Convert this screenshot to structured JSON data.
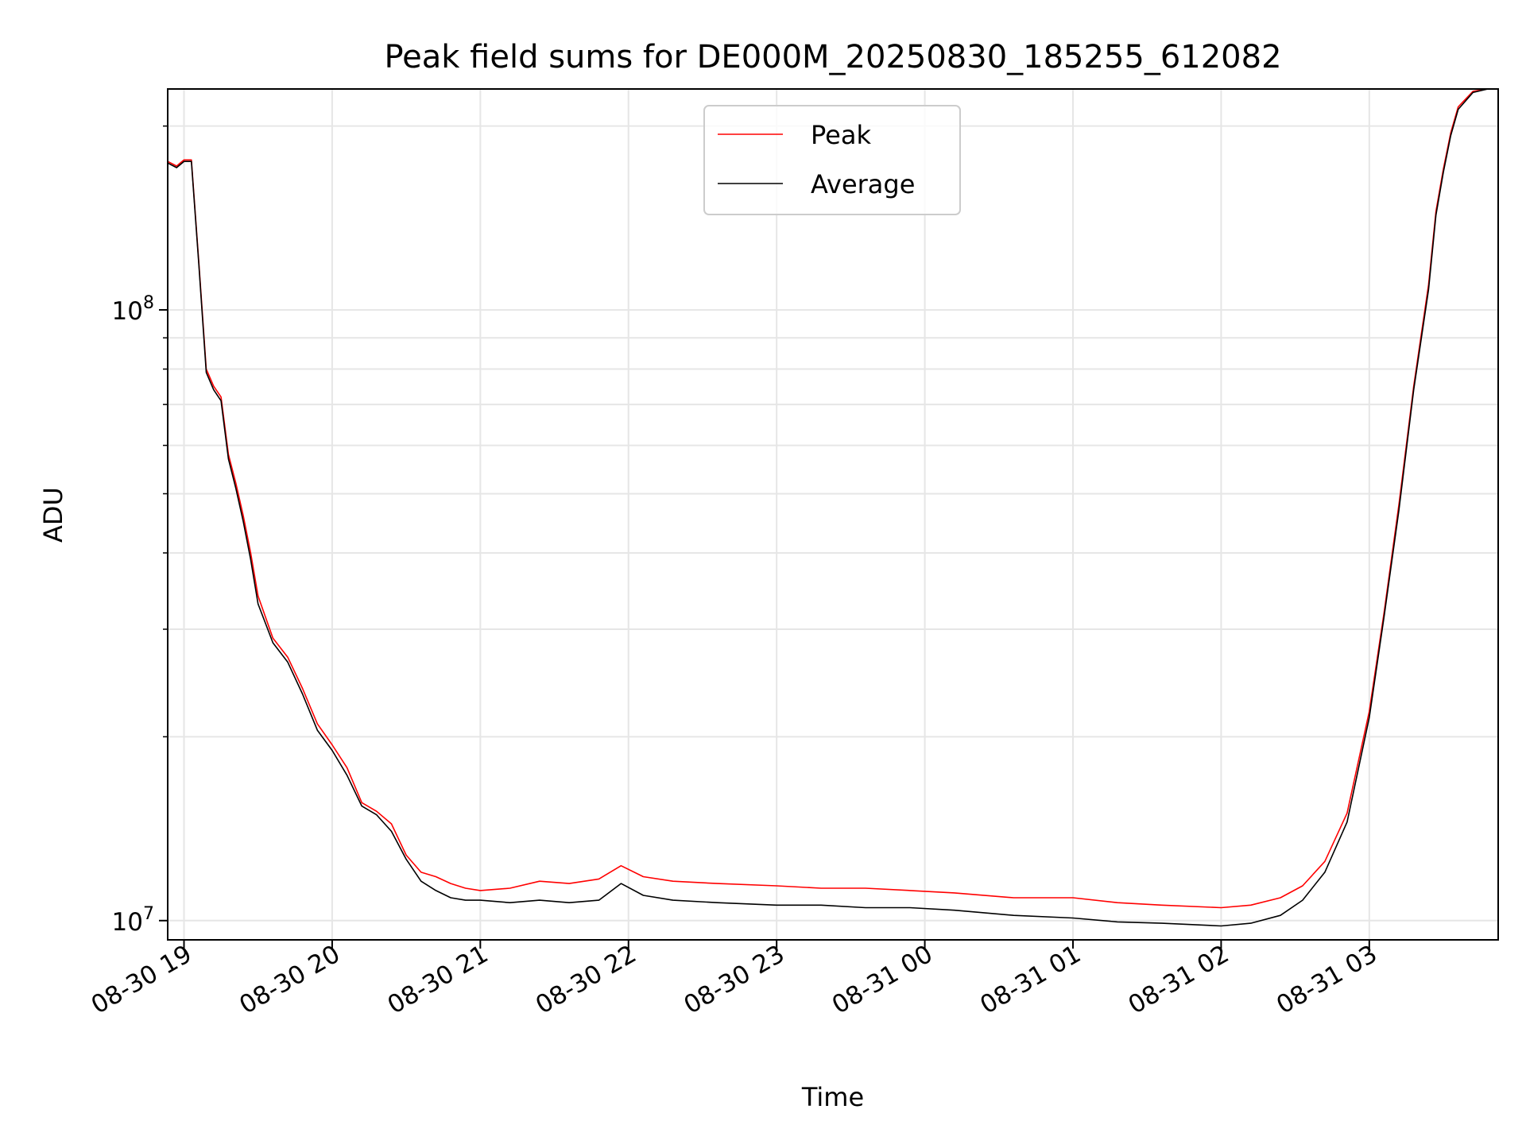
{
  "chart_data": {
    "type": "line",
    "title": "Peak field sums for DE000M_20250830_185255_612082",
    "xlabel": "Time",
    "ylabel": "ADU",
    "y_scale": "log",
    "ylim": [
      9300000,
      230000000
    ],
    "xlim_hours": [
      -0.11,
      8.87
    ],
    "grid": true,
    "legend_position": "upper center",
    "x_ticks": [
      {
        "hour": 0,
        "label": "08-30 19"
      },
      {
        "hour": 1,
        "label": "08-30 20"
      },
      {
        "hour": 2,
        "label": "08-30 21"
      },
      {
        "hour": 3,
        "label": "08-30 22"
      },
      {
        "hour": 4,
        "label": "08-30 23"
      },
      {
        "hour": 5,
        "label": "08-31 00"
      },
      {
        "hour": 6,
        "label": "08-31 01"
      },
      {
        "hour": 7,
        "label": "08-31 02"
      },
      {
        "hour": 8,
        "label": "08-31 03"
      }
    ],
    "y_ticks": [
      {
        "value": 10000000,
        "base": "10",
        "exp": "7"
      },
      {
        "value": 100000000,
        "base": "10",
        "exp": "8"
      }
    ],
    "x_unit": "hours after 08-30 19:00",
    "series": [
      {
        "name": "Peak",
        "color": "#ff0000",
        "x": [
          -0.11,
          -0.05,
          0.0,
          0.05,
          0.1,
          0.15,
          0.2,
          0.25,
          0.3,
          0.35,
          0.4,
          0.45,
          0.5,
          0.6,
          0.7,
          0.8,
          0.9,
          1.0,
          1.1,
          1.2,
          1.3,
          1.4,
          1.5,
          1.6,
          1.7,
          1.8,
          1.9,
          2.0,
          2.2,
          2.4,
          2.6,
          2.8,
          2.95,
          3.1,
          3.3,
          3.6,
          4.0,
          4.3,
          4.6,
          4.9,
          5.2,
          5.6,
          6.0,
          6.3,
          6.6,
          7.0,
          7.2,
          7.4,
          7.55,
          7.7,
          7.85,
          8.0,
          8.1,
          8.2,
          8.3,
          8.4,
          8.45,
          8.5,
          8.55,
          8.6,
          8.7,
          8.8,
          8.87
        ],
        "y": [
          175000000,
          172000000,
          176000000,
          176000000,
          120000000,
          80000000,
          75000000,
          72000000,
          58000000,
          52000000,
          46000000,
          40000000,
          34000000,
          29000000,
          27000000,
          24000000,
          21000000,
          19400000,
          17800000,
          15600000,
          15100000,
          14400000,
          12800000,
          12000000,
          11800000,
          11500000,
          11300000,
          11200000,
          11300000,
          11600000,
          11500000,
          11700000,
          12300000,
          11800000,
          11600000,
          11500000,
          11400000,
          11300000,
          11300000,
          11200000,
          11100000,
          10900000,
          10900000,
          10700000,
          10600000,
          10500000,
          10600000,
          10900000,
          11400000,
          12500000,
          15000000,
          22000000,
          32000000,
          48000000,
          75000000,
          110000000,
          145000000,
          170000000,
          195000000,
          215000000,
          228000000,
          230000000,
          230000000
        ]
      },
      {
        "name": "Average",
        "color": "#000000",
        "x": [
          -0.11,
          -0.05,
          0.0,
          0.05,
          0.1,
          0.15,
          0.2,
          0.25,
          0.3,
          0.35,
          0.4,
          0.45,
          0.5,
          0.6,
          0.7,
          0.8,
          0.9,
          1.0,
          1.1,
          1.2,
          1.3,
          1.4,
          1.5,
          1.6,
          1.7,
          1.8,
          1.9,
          2.0,
          2.2,
          2.4,
          2.6,
          2.8,
          2.95,
          3.1,
          3.3,
          3.6,
          4.0,
          4.3,
          4.6,
          4.9,
          5.2,
          5.6,
          6.0,
          6.3,
          6.6,
          7.0,
          7.2,
          7.4,
          7.55,
          7.7,
          7.85,
          8.0,
          8.1,
          8.2,
          8.3,
          8.4,
          8.45,
          8.5,
          8.55,
          8.6,
          8.7,
          8.8,
          8.87
        ],
        "y": [
          174000000,
          171000000,
          175000000,
          175000000,
          119000000,
          79000000,
          74000000,
          71000000,
          57000000,
          51000000,
          45000000,
          39000000,
          33000000,
          28500000,
          26500000,
          23500000,
          20500000,
          19000000,
          17300000,
          15400000,
          14900000,
          14000000,
          12600000,
          11600000,
          11200000,
          10900000,
          10800000,
          10800000,
          10700000,
          10800000,
          10700000,
          10800000,
          11500000,
          11000000,
          10800000,
          10700000,
          10600000,
          10600000,
          10500000,
          10500000,
          10400000,
          10200000,
          10100000,
          9950000,
          9900000,
          9800000,
          9900000,
          10200000,
          10800000,
          12000000,
          14500000,
          21500000,
          31500000,
          47000000,
          74000000,
          108000000,
          143000000,
          168000000,
          193000000,
          213000000,
          227000000,
          230000000,
          230000000
        ]
      }
    ]
  }
}
